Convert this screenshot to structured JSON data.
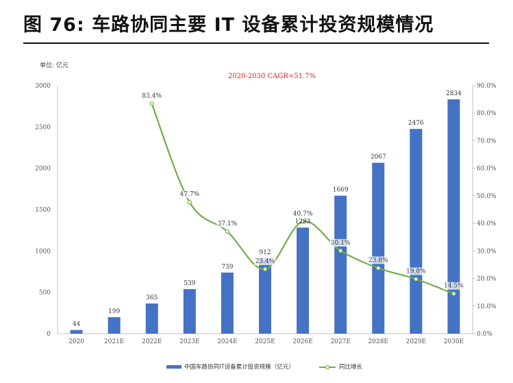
{
  "figure": {
    "title": "图 76: 车路协同主要 IT 设备累计投资规模情况"
  },
  "chart_data": {
    "type": "bar",
    "unit_label": "单位: 亿元",
    "annotation": "2020-2030 CAGR=51.7%",
    "categories": [
      "2020",
      "2021E",
      "2022E",
      "2023E",
      "2024E",
      "2025E",
      "2026E",
      "2027E",
      "2028E",
      "2029E",
      "2030E"
    ],
    "series": [
      {
        "name": "中国车路协同IT设备累计投资规模（亿元）",
        "type": "bar",
        "axis": "left",
        "color": "#4472c4",
        "values": [
          44,
          199,
          365,
          539,
          739,
          912,
          1283,
          1669,
          2067,
          2476,
          2834
        ],
        "labels": [
          "44",
          "199",
          "365",
          "539",
          "739",
          "912",
          "1283",
          "1669",
          "2067",
          "2476",
          "2834"
        ]
      },
      {
        "name": "同比增长",
        "type": "line",
        "axis": "right",
        "color": "#70ad47",
        "values": [
          null,
          null,
          83.4,
          47.7,
          37.1,
          23.4,
          40.7,
          30.1,
          23.8,
          19.8,
          14.5
        ],
        "labels": [
          "",
          "",
          "83.4%",
          "47.7%",
          "37.1%",
          "23.4%",
          "40.7%",
          "30.1%",
          "23.8%",
          "19.8%",
          "14.5%"
        ]
      }
    ],
    "y_left": {
      "min": 0,
      "max": 3000,
      "ticks": [
        "0",
        "500",
        "1000",
        "1500",
        "2000",
        "2500",
        "3000"
      ]
    },
    "y_right": {
      "min": 0,
      "max": 90,
      "ticks": [
        "0.0%",
        "10.0%",
        "20.0%",
        "30.0%",
        "40.0%",
        "50.0%",
        "60.0%",
        "70.0%",
        "80.0%",
        "90.0%"
      ]
    },
    "grid": false,
    "legend_position": "bottom"
  }
}
